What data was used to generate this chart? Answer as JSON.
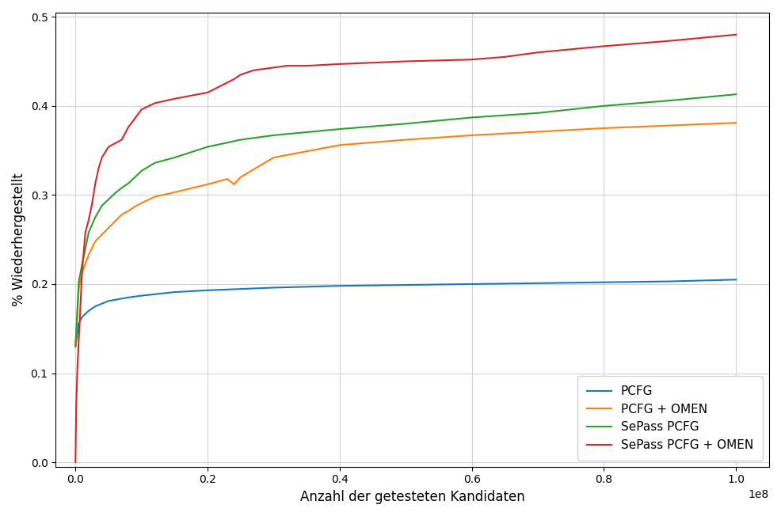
{
  "title": "",
  "xlabel": "Anzahl der getesteten Kandidaten",
  "ylabel": "% Wiederhergestellt",
  "xlim": [
    -3000000,
    105000000.0
  ],
  "ylim": [
    -0.005,
    0.505
  ],
  "grid": true,
  "legend_labels": [
    "PCFG",
    "PCFG + OMEN",
    "SePass PCFG",
    "SePass PCFG + OMEN"
  ],
  "line_colors": [
    "#1f77b4",
    "#ff7f0e",
    "#2ca02c",
    "#d62728"
  ],
  "pcfg_x": [
    0,
    500000,
    1000000,
    2000000,
    3000000,
    5000000,
    8000000,
    10000000,
    15000000,
    20000000,
    30000000,
    40000000,
    50000000,
    60000000,
    70000000,
    80000000,
    90000000,
    100000000
  ],
  "pcfg_y": [
    0.13,
    0.156,
    0.163,
    0.17,
    0.175,
    0.181,
    0.185,
    0.187,
    0.191,
    0.193,
    0.196,
    0.198,
    0.199,
    0.2,
    0.201,
    0.202,
    0.203,
    0.205
  ],
  "pcfg_omen_x": [
    0,
    500000,
    1000000,
    2000000,
    3000000,
    5000000,
    7000000,
    8000000,
    9000000,
    10000000,
    12000000,
    15000000,
    20000000,
    23000000,
    24000000,
    25000000,
    30000000,
    40000000,
    50000000,
    60000000,
    70000000,
    80000000,
    90000000,
    100000000
  ],
  "pcfg_omen_y": [
    0.13,
    0.195,
    0.213,
    0.233,
    0.248,
    0.263,
    0.278,
    0.282,
    0.287,
    0.291,
    0.298,
    0.303,
    0.312,
    0.318,
    0.312,
    0.32,
    0.342,
    0.356,
    0.362,
    0.367,
    0.371,
    0.375,
    0.378,
    0.381
  ],
  "sepass_pcfg_x": [
    0,
    500000,
    1000000,
    2000000,
    3000000,
    4000000,
    5000000,
    6000000,
    7000000,
    8000000,
    9000000,
    10000000,
    12000000,
    15000000,
    20000000,
    25000000,
    30000000,
    40000000,
    50000000,
    60000000,
    70000000,
    80000000,
    90000000,
    100000000
  ],
  "sepass_pcfg_y": [
    0.13,
    0.203,
    0.222,
    0.258,
    0.275,
    0.288,
    0.295,
    0.302,
    0.308,
    0.313,
    0.32,
    0.327,
    0.336,
    0.342,
    0.354,
    0.362,
    0.367,
    0.374,
    0.38,
    0.387,
    0.392,
    0.4,
    0.406,
    0.413
  ],
  "sepass_pcfg_omen_x": [
    0,
    100000,
    300000,
    600000,
    1000000,
    1500000,
    2000000,
    2500000,
    3000000,
    3500000,
    4000000,
    5000000,
    6000000,
    7000000,
    8000000,
    9000000,
    10000000,
    12000000,
    15000000,
    20000000,
    24000000,
    25000000,
    27000000,
    30000000,
    32000000,
    35000000,
    40000000,
    50000000,
    55000000,
    60000000,
    65000000,
    70000000,
    80000000,
    90000000,
    100000000
  ],
  "sepass_pcfg_omen_y": [
    0.0,
    0.06,
    0.108,
    0.152,
    0.215,
    0.258,
    0.272,
    0.29,
    0.313,
    0.33,
    0.342,
    0.354,
    0.358,
    0.362,
    0.376,
    0.386,
    0.396,
    0.403,
    0.408,
    0.415,
    0.43,
    0.435,
    0.44,
    0.443,
    0.445,
    0.445,
    0.447,
    0.45,
    0.451,
    0.452,
    0.455,
    0.46,
    0.467,
    0.473,
    0.48
  ]
}
